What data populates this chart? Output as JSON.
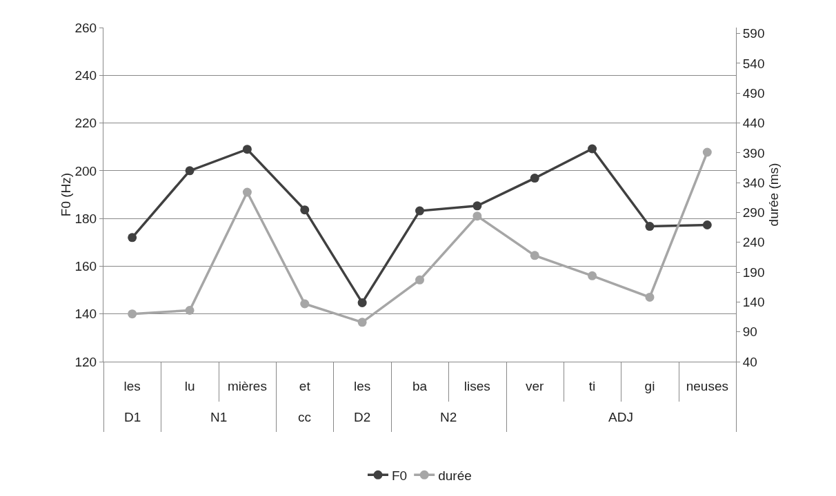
{
  "chart_data": {
    "type": "line",
    "ylabel": "F0 (Hz)",
    "y2label": "durée (ms)",
    "categories": [
      "les",
      "lu",
      "mières",
      "et",
      "les",
      "ba",
      "lises",
      "ver",
      "ti",
      "gi",
      "neuses"
    ],
    "annotations": [
      "D1",
      "N1",
      "cc",
      "D2",
      "N2",
      "ADJ"
    ],
    "series": [
      {
        "name": "F0",
        "color": "#404040",
        "values": [
          172,
          200,
          209,
          183.6,
          144.7,
          183.2,
          185.3,
          196.9,
          209.2,
          176.7,
          177.3
        ]
      },
      {
        "name": "durée",
        "color": "#a6a6a6",
        "axis": "y2",
        "values": [
          120,
          126,
          324,
          137,
          106,
          177,
          284,
          218,
          184,
          148,
          391
        ]
      }
    ],
    "ylim": [
      120,
      260
    ],
    "yticks": [
      120,
      140,
      160,
      180,
      200,
      220,
      240,
      260
    ],
    "y2lim": [
      40,
      600
    ],
    "y2ticks": [
      40,
      90,
      140,
      190,
      240,
      290,
      340,
      390,
      440,
      490,
      540,
      590
    ],
    "grid": "y",
    "legend": "bottom",
    "marker": "circle",
    "line_style": "solid"
  }
}
